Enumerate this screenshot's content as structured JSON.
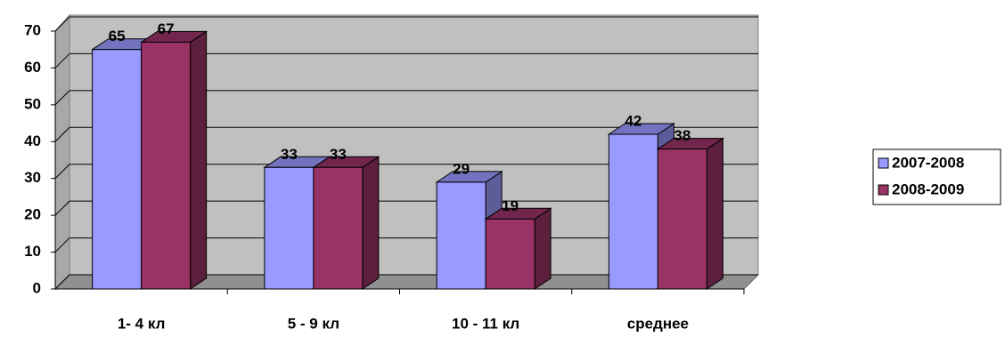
{
  "chart_data": {
    "type": "bar3d",
    "categories": [
      "1- 4 кл",
      "5 - 9 кл",
      "10 - 11 кл",
      "среднее"
    ],
    "series": [
      {
        "name": "2007-2008",
        "color": "#9999ff",
        "values": [
          65,
          33,
          29,
          42
        ]
      },
      {
        "name": "2008-2009",
        "color": "#993366",
        "values": [
          67,
          33,
          19,
          38
        ]
      }
    ],
    "ylim": [
      0,
      70
    ],
    "yticks": [
      0,
      10,
      20,
      30,
      40,
      50,
      60,
      70
    ],
    "grid": true,
    "legend": "right"
  }
}
